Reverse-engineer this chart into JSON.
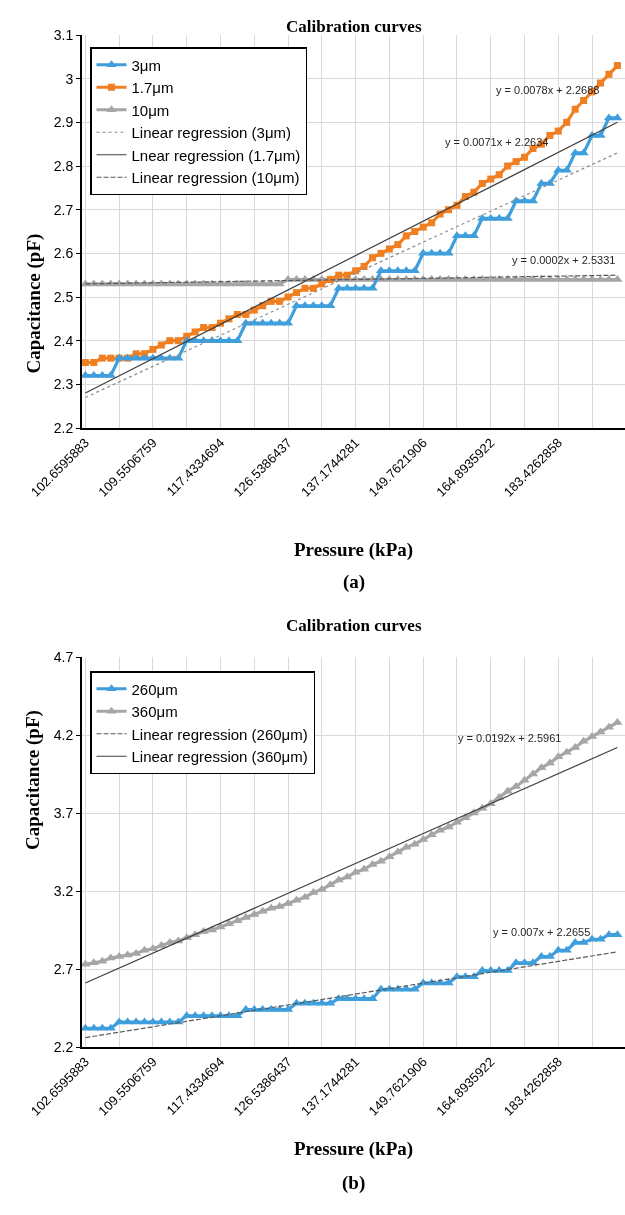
{
  "chart_data": [
    {
      "type": "line",
      "title": "Calibration curves",
      "xlabel": "Pressure (kPa)",
      "ylabel": "Capacitance (pF)",
      "categories": [
        "102.6595883",
        null,
        null,
        null,
        null,
        null,
        null,
        null,
        "109.5506759",
        null,
        null,
        null,
        null,
        null,
        null,
        null,
        "117.4334694",
        null,
        null,
        null,
        null,
        null,
        null,
        null,
        "126.5386437",
        null,
        null,
        null,
        null,
        null,
        null,
        null,
        "137.1744281",
        null,
        null,
        null,
        null,
        null,
        null,
        null,
        "149.7621906",
        null,
        null,
        null,
        null,
        null,
        null,
        null,
        "164.8935922",
        null,
        null,
        null,
        null,
        null,
        null,
        null,
        "183.4262858",
        null,
        null,
        null,
        null,
        null,
        null,
        null
      ],
      "ylim": [
        2.2,
        3.1
      ],
      "yticks": [
        2.2,
        2.3,
        2.4,
        2.5,
        2.6,
        2.7,
        2.8,
        2.9,
        3,
        3.1
      ],
      "grid": true,
      "legend": "top left",
      "annotations": [
        "y = 0.0078x + 2.2688",
        "y = 0.0071x + 2.2634",
        "y = 0.0002x + 2.5331",
        "(a)"
      ],
      "series": [
        {
          "name": "3μm",
          "color": "#3f9edc",
          "marker": "triangle",
          "line_style": "solid",
          "values": [
            2.32,
            2.32,
            2.32,
            2.32,
            2.36,
            2.36,
            2.36,
            2.36,
            2.36,
            2.36,
            2.36,
            2.36,
            2.4,
            2.4,
            2.4,
            2.4,
            2.4,
            2.4,
            2.4,
            2.44,
            2.44,
            2.44,
            2.44,
            2.44,
            2.44,
            2.48,
            2.48,
            2.48,
            2.48,
            2.48,
            2.52,
            2.52,
            2.52,
            2.52,
            2.52,
            2.56,
            2.56,
            2.56,
            2.56,
            2.56,
            2.6,
            2.6,
            2.6,
            2.6,
            2.64,
            2.64,
            2.64,
            2.68,
            2.68,
            2.68,
            2.68,
            2.72,
            2.72,
            2.72,
            2.76,
            2.76,
            2.79,
            2.79,
            2.83,
            2.83,
            2.87,
            2.87,
            2.91,
            2.91
          ]
        },
        {
          "name": "1.7μm",
          "color": "#f07f22",
          "marker": "square",
          "line_style": "solid",
          "values": [
            2.35,
            2.35,
            2.36,
            2.36,
            2.36,
            2.36,
            2.37,
            2.37,
            2.38,
            2.39,
            2.4,
            2.4,
            2.41,
            2.42,
            2.43,
            2.43,
            2.44,
            2.45,
            2.46,
            2.46,
            2.47,
            2.48,
            2.49,
            2.49,
            2.5,
            2.51,
            2.52,
            2.52,
            2.53,
            2.54,
            2.55,
            2.55,
            2.56,
            2.57,
            2.59,
            2.6,
            2.61,
            2.62,
            2.64,
            2.65,
            2.66,
            2.67,
            2.69,
            2.7,
            2.71,
            2.73,
            2.74,
            2.76,
            2.77,
            2.78,
            2.8,
            2.81,
            2.82,
            2.84,
            2.85,
            2.87,
            2.88,
            2.9,
            2.93,
            2.95,
            2.97,
            2.99,
            3.01,
            3.03
          ]
        },
        {
          "name": "10μm",
          "color": "#a6a6a6",
          "marker": "triangle",
          "line_style": "solid",
          "values": [
            2.53,
            2.53,
            2.53,
            2.53,
            2.53,
            2.53,
            2.53,
            2.53,
            2.53,
            2.53,
            2.53,
            2.53,
            2.53,
            2.53,
            2.53,
            2.53,
            2.53,
            2.53,
            2.53,
            2.53,
            2.53,
            2.53,
            2.53,
            2.53,
            2.54,
            2.54,
            2.54,
            2.54,
            2.54,
            2.54,
            2.54,
            2.54,
            2.54,
            2.54,
            2.54,
            2.54,
            2.54,
            2.54,
            2.54,
            2.54,
            2.54,
            2.54,
            2.54,
            2.54,
            2.54,
            2.54,
            2.54,
            2.54,
            2.54,
            2.54,
            2.54,
            2.54,
            2.54,
            2.54,
            2.54,
            2.54,
            2.54,
            2.54,
            2.54,
            2.54,
            2.54,
            2.54,
            2.54,
            2.54
          ]
        },
        {
          "name": "Linear regression (3μm)",
          "color": "#8c8c8c",
          "marker": "none",
          "line_style": "dotted",
          "values": [
            2.27,
            null,
            null,
            null,
            null,
            null,
            null,
            null,
            null,
            null,
            null,
            null,
            null,
            null,
            null,
            null,
            null,
            null,
            null,
            null,
            null,
            null,
            null,
            null,
            null,
            null,
            null,
            null,
            null,
            null,
            null,
            null,
            null,
            null,
            null,
            null,
            null,
            null,
            null,
            null,
            null,
            null,
            null,
            null,
            null,
            null,
            null,
            null,
            null,
            null,
            null,
            null,
            null,
            null,
            null,
            null,
            null,
            null,
            null,
            null,
            null,
            null,
            null,
            2.83
          ]
        },
        {
          "name": "Lnear regression (1.7μm)",
          "color": "#404040",
          "marker": "none",
          "line_style": "solid",
          "values": [
            2.28,
            null,
            null,
            null,
            null,
            null,
            null,
            null,
            null,
            null,
            null,
            null,
            null,
            null,
            null,
            null,
            null,
            null,
            null,
            null,
            null,
            null,
            null,
            null,
            null,
            null,
            null,
            null,
            null,
            null,
            null,
            null,
            null,
            null,
            null,
            null,
            null,
            null,
            null,
            null,
            null,
            null,
            null,
            null,
            null,
            null,
            null,
            null,
            null,
            null,
            null,
            null,
            null,
            null,
            null,
            null,
            null,
            null,
            null,
            null,
            null,
            null,
            null,
            2.9
          ]
        },
        {
          "name": "Linear regression (10μm)",
          "color": "#595959",
          "marker": "none",
          "line_style": "dashed",
          "values": [
            2.53,
            null,
            null,
            null,
            null,
            null,
            null,
            null,
            null,
            null,
            null,
            null,
            null,
            null,
            null,
            null,
            null,
            null,
            null,
            null,
            null,
            null,
            null,
            null,
            null,
            null,
            null,
            null,
            null,
            null,
            null,
            null,
            null,
            null,
            null,
            null,
            null,
            null,
            null,
            null,
            null,
            null,
            null,
            null,
            null,
            null,
            null,
            null,
            null,
            null,
            null,
            null,
            null,
            null,
            null,
            null,
            null,
            null,
            null,
            null,
            null,
            null,
            null,
            2.55
          ]
        }
      ]
    },
    {
      "type": "line",
      "title": "Calibration curves",
      "xlabel": "Pressure (kPa)",
      "ylabel": "Capacitance (pF)",
      "categories": [
        "102.6595883",
        null,
        null,
        null,
        null,
        null,
        null,
        null,
        "109.5506759",
        null,
        null,
        null,
        null,
        null,
        null,
        null,
        "117.4334694",
        null,
        null,
        null,
        null,
        null,
        null,
        null,
        "126.5386437",
        null,
        null,
        null,
        null,
        null,
        null,
        null,
        "137.1744281",
        null,
        null,
        null,
        null,
        null,
        null,
        null,
        "149.7621906",
        null,
        null,
        null,
        null,
        null,
        null,
        null,
        "164.8935922",
        null,
        null,
        null,
        null,
        null,
        null,
        null,
        "183.4262858",
        null,
        null,
        null,
        null,
        null,
        null,
        null
      ],
      "ylim": [
        2.2,
        4.7
      ],
      "yticks": [
        2.2,
        2.7,
        3.2,
        3.7,
        4.2,
        4.7
      ],
      "grid": true,
      "legend": "top left",
      "annotations": [
        "y = 0.0192x + 2.5961",
        "y = 0.007x + 2.2655",
        "(b)"
      ],
      "series": [
        {
          "name": "260μm",
          "color": "#3f9edc",
          "marker": "triangle",
          "line_style": "solid",
          "values": [
            2.32,
            2.32,
            2.32,
            2.32,
            2.36,
            2.36,
            2.36,
            2.36,
            2.36,
            2.36,
            2.36,
            2.36,
            2.4,
            2.4,
            2.4,
            2.4,
            2.4,
            2.4,
            2.4,
            2.44,
            2.44,
            2.44,
            2.44,
            2.44,
            2.44,
            2.48,
            2.48,
            2.48,
            2.48,
            2.48,
            2.51,
            2.51,
            2.51,
            2.51,
            2.51,
            2.57,
            2.57,
            2.57,
            2.57,
            2.57,
            2.61,
            2.61,
            2.61,
            2.61,
            2.65,
            2.65,
            2.65,
            2.69,
            2.69,
            2.69,
            2.69,
            2.74,
            2.74,
            2.74,
            2.78,
            2.78,
            2.82,
            2.82,
            2.87,
            2.87,
            2.89,
            2.89,
            2.92,
            2.92
          ]
        },
        {
          "name": "360μm",
          "color": "#a6a6a6",
          "marker": "triangle",
          "line_style": "solid",
          "values": [
            2.73,
            2.74,
            2.75,
            2.77,
            2.78,
            2.79,
            2.8,
            2.82,
            2.83,
            2.85,
            2.87,
            2.88,
            2.9,
            2.92,
            2.94,
            2.95,
            2.97,
            2.99,
            3.01,
            3.03,
            3.05,
            3.07,
            3.09,
            3.1,
            3.12,
            3.14,
            3.16,
            3.19,
            3.21,
            3.24,
            3.27,
            3.29,
            3.32,
            3.34,
            3.37,
            3.39,
            3.42,
            3.45,
            3.48,
            3.5,
            3.53,
            3.56,
            3.59,
            3.61,
            3.64,
            3.67,
            3.7,
            3.73,
            3.76,
            3.8,
            3.84,
            3.87,
            3.91,
            3.95,
            3.99,
            4.02,
            4.06,
            4.09,
            4.12,
            4.16,
            4.19,
            4.22,
            4.25,
            4.28
          ]
        },
        {
          "name": "Linear regression (260μm)",
          "color": "#595959",
          "marker": "none",
          "line_style": "dashed",
          "values": [
            2.26,
            null,
            null,
            null,
            null,
            null,
            null,
            null,
            null,
            null,
            null,
            null,
            null,
            null,
            null,
            null,
            null,
            null,
            null,
            null,
            null,
            null,
            null,
            null,
            null,
            null,
            null,
            null,
            null,
            null,
            null,
            null,
            null,
            null,
            null,
            null,
            null,
            null,
            null,
            null,
            null,
            null,
            null,
            null,
            null,
            null,
            null,
            null,
            null,
            null,
            null,
            null,
            null,
            null,
            null,
            null,
            null,
            null,
            null,
            null,
            null,
            null,
            null,
            2.81
          ]
        },
        {
          "name": "Linear regression (360μm)",
          "color": "#404040",
          "marker": "none",
          "line_style": "solid",
          "values": [
            2.61,
            null,
            null,
            null,
            null,
            null,
            null,
            null,
            null,
            null,
            null,
            null,
            null,
            null,
            null,
            null,
            null,
            null,
            null,
            null,
            null,
            null,
            null,
            null,
            null,
            null,
            null,
            null,
            null,
            null,
            null,
            null,
            null,
            null,
            null,
            null,
            null,
            null,
            null,
            null,
            null,
            null,
            null,
            null,
            null,
            null,
            null,
            null,
            null,
            null,
            null,
            null,
            null,
            null,
            null,
            null,
            null,
            null,
            null,
            null,
            null,
            null,
            null,
            4.12
          ]
        }
      ]
    }
  ]
}
